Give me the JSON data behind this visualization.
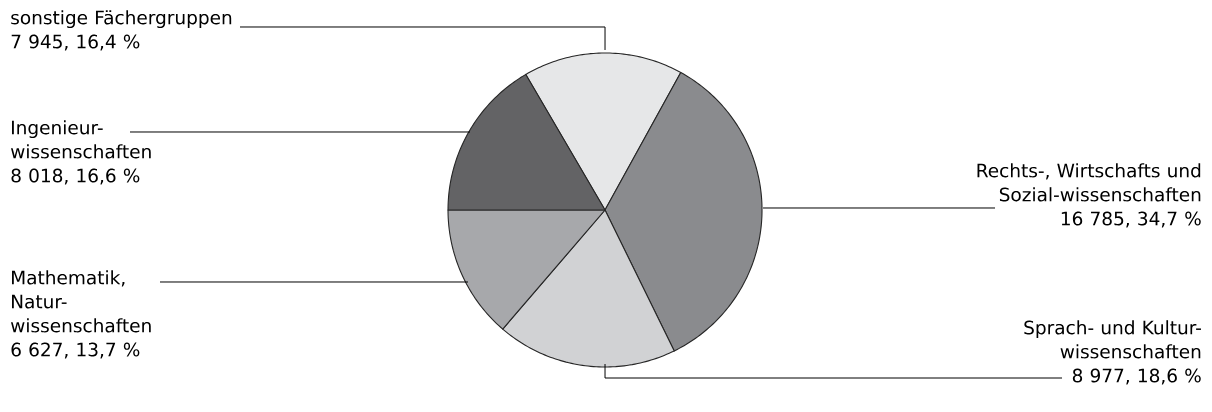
{
  "chart_data": {
    "type": "pie",
    "categories": [
      "sonstige Fächergruppen",
      "Rechts-, Wirtschafts und Sozial-wissenschaften",
      "Sprach- und Kultur-wissenschaften",
      "Mathematik, Natur-wissenschaften",
      "Ingenieur-wissenschaften"
    ],
    "values": [
      7945,
      16785,
      8977,
      6627,
      8018
    ],
    "value_labels": [
      "7 945, 16,4 %",
      "16 785, 34,7 %",
      "8 977, 18,6 %",
      "6 627, 13,7 %",
      "8 018, 16,6 %"
    ],
    "colors": [
      "#e6e7e8",
      "#8a8b8e",
      "#d1d2d4",
      "#a7a8ab",
      "#636365"
    ]
  }
}
